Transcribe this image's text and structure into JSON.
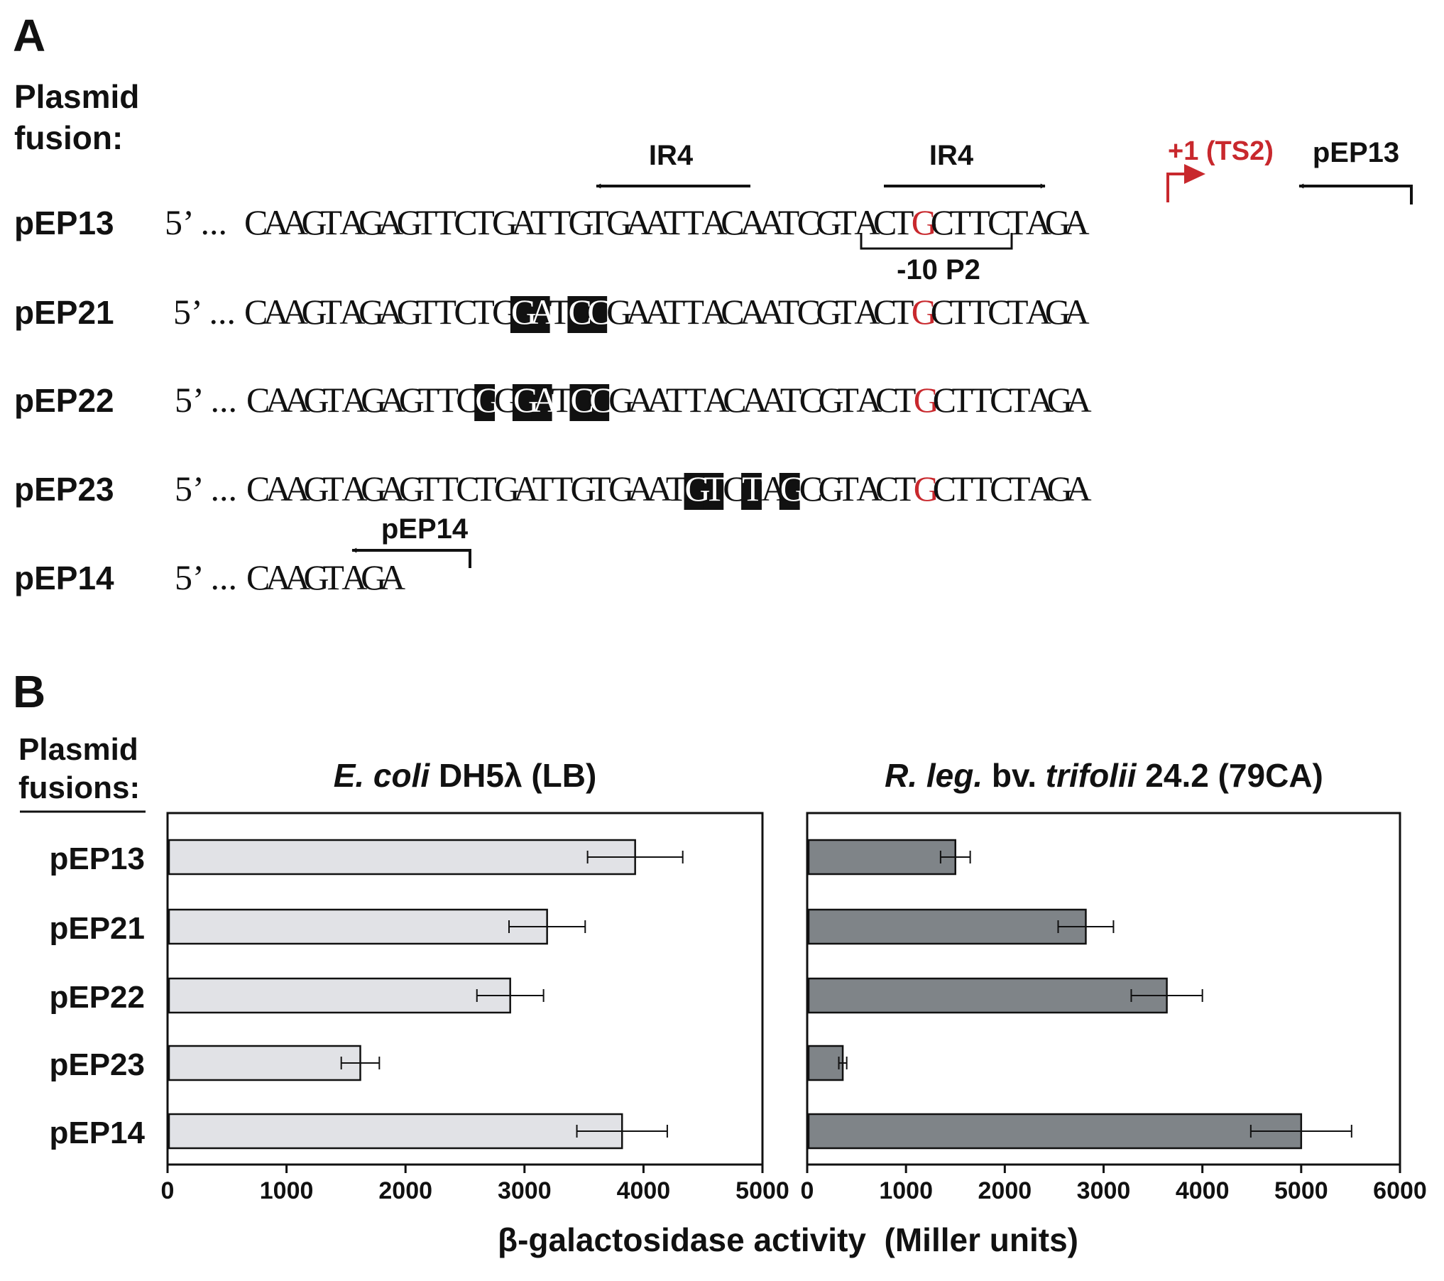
{
  "panel_a": {
    "label": "A",
    "header": [
      "Plasmid",
      "fusion:"
    ],
    "five_prime": "5’ ...",
    "five_prime_tight": "5’ ...",
    "features": {
      "ir4_left": "IR4",
      "ir4_right": "IR4",
      "minus10": "-10 P2",
      "tss": "+1 (TS2)",
      "pep13_primer": "pEP13",
      "pep14_primer": "pEP14"
    },
    "rows": [
      {
        "name": "pEP13",
        "sequence": "CAAGTAGAGTTCTGATTGTGAATTACAATCGTACTGCTTCTAGA",
        "red_index": 35,
        "highlight": []
      },
      {
        "name": "pEP21",
        "sequence": "CAAGTAGAGTTCTGGATCCGAATTACAATCGTACTGCTTCTAGA",
        "red_index": 35,
        "highlight": [
          14,
          15,
          17,
          18
        ]
      },
      {
        "name": "pEP22",
        "sequence": "CAAGTAGAGTTCGGGATCCGAATTACAATCGTACTGCTTCTAGA",
        "red_index": 35,
        "highlight": [
          12,
          14,
          15,
          17,
          18
        ]
      },
      {
        "name": "pEP23",
        "sequence": "CAAGTAGAGTTCTGATTGTGAATGTCTAGCGTACTGCTTCTAGA",
        "red_index": 35,
        "highlight": [
          23,
          24,
          26,
          28
        ]
      },
      {
        "name": "pEP14",
        "sequence": "CAAGTAGA",
        "red_index": -1,
        "highlight": []
      }
    ]
  },
  "panel_b": {
    "label": "B",
    "header": [
      "Plasmid",
      "fusions:"
    ],
    "xlabel": "β-galactosidase activity  (Miller units)"
  },
  "colors": {
    "ecoli_bar": "#e1e2e6",
    "rleg_bar": "#7f8488",
    "highlight_bg": "#111111",
    "tss_red": "#c8282d"
  },
  "chart_data": [
    {
      "type": "bar",
      "orientation": "horizontal",
      "title_parts": [
        {
          "text": "E. coli",
          "italic": true
        },
        {
          "text": " DH5λ (LB)",
          "italic": false
        }
      ],
      "categories": [
        "pEP13",
        "pEP21",
        "pEP22",
        "pEP23",
        "pEP14"
      ],
      "values": [
        3930,
        3190,
        2880,
        1620,
        3820
      ],
      "errors": [
        400,
        320,
        280,
        160,
        380
      ],
      "xlim": [
        0,
        5000
      ],
      "xticks": [
        0,
        1000,
        2000,
        3000,
        4000,
        5000
      ]
    },
    {
      "type": "bar",
      "orientation": "horizontal",
      "title_parts": [
        {
          "text": "R. leg.",
          "italic": true
        },
        {
          "text": " bv. ",
          "italic": false
        },
        {
          "text": "trifolii",
          "italic": true
        },
        {
          "text": " 24.2 (79CA)",
          "italic": false
        }
      ],
      "categories": [
        "pEP13",
        "pEP21",
        "pEP22",
        "pEP23",
        "pEP14"
      ],
      "values": [
        1500,
        2820,
        3640,
        360,
        5000
      ],
      "errors": [
        150,
        280,
        360,
        40,
        510
      ],
      "xlim": [
        0,
        6000
      ],
      "xticks": [
        0,
        1000,
        2000,
        3000,
        4000,
        5000,
        6000
      ]
    }
  ]
}
